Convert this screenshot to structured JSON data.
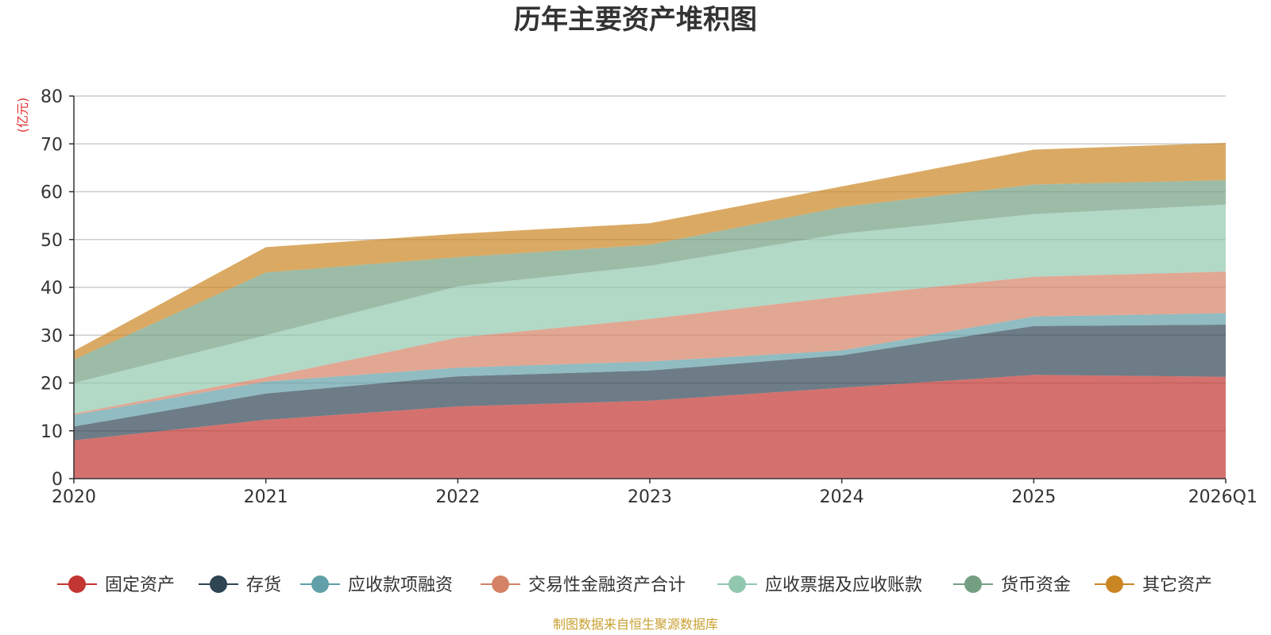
{
  "chart_data": {
    "type": "area",
    "stacked": true,
    "title": "历年主要资产堆积图",
    "ylabel": "(亿元)",
    "xlabel": "",
    "ylim": [
      0,
      80
    ],
    "yticks": [
      0,
      10,
      20,
      30,
      40,
      50,
      60,
      70,
      80
    ],
    "categories": [
      "2020",
      "2021",
      "2022",
      "2023",
      "2024",
      "2025",
      "2026Q1"
    ],
    "series": [
      {
        "name": "固定资产",
        "color": "#c23531",
        "values": [
          8.0,
          12.3,
          15.1,
          16.3,
          19.0,
          21.7,
          21.3
        ]
      },
      {
        "name": "存货",
        "color": "#2f4554",
        "values": [
          2.9,
          5.5,
          6.3,
          6.3,
          6.8,
          10.2,
          10.9
        ]
      },
      {
        "name": "应收款项融资",
        "color": "#61a0a8",
        "values": [
          2.4,
          2.5,
          1.8,
          1.9,
          1.0,
          2.0,
          2.4
        ]
      },
      {
        "name": "交易性金融资产合计",
        "color": "#d48265",
        "values": [
          0.3,
          0.9,
          6.3,
          8.9,
          11.3,
          8.3,
          8.7
        ]
      },
      {
        "name": "应收票据及应收账款",
        "color": "#91c7ae",
        "values": [
          6.4,
          8.8,
          10.7,
          11.1,
          13.1,
          13.1,
          14.0
        ]
      },
      {
        "name": "货币资金",
        "color": "#749f83",
        "values": [
          4.9,
          13.1,
          6.1,
          4.4,
          5.6,
          6.2,
          5.1
        ]
      },
      {
        "name": "其它资产",
        "color": "#ca8622",
        "values": [
          1.8,
          5.3,
          4.9,
          4.5,
          4.3,
          7.3,
          7.8
        ]
      }
    ],
    "grid": true,
    "legend_position": "bottom"
  },
  "source_note": "制图数据来自恒生聚源数据库"
}
